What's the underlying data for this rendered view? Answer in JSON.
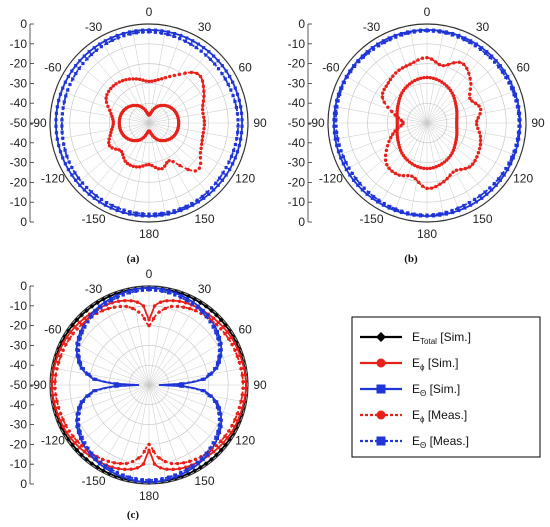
{
  "colors": {
    "total": "#000000",
    "ephi": "#e8201a",
    "etheta": "#1f35d6",
    "grid": "#c9c9c9",
    "axis": "#333333"
  },
  "chart_data": [
    {
      "type": "polar",
      "caption": "(a)",
      "angle_ticks": [
        "0",
        "30",
        "60",
        "90",
        "120",
        "150",
        "180",
        "-150",
        "-120",
        "-90",
        "-60",
        "-30"
      ],
      "radial_ticks_upper": [
        "0",
        "-10",
        "-20",
        "-30",
        "-40",
        "-50"
      ],
      "radial_ticks_lower": [
        "-40",
        "-30",
        "-20",
        "-10",
        "0"
      ],
      "rlim": [
        -50,
        0
      ],
      "series": [
        {
          "key": "etheta_sim",
          "angles_deg": [
            0,
            30,
            60,
            90,
            120,
            150,
            180,
            210,
            240,
            270,
            300,
            330
          ],
          "values_db": [
            -3,
            -3,
            -3,
            -3,
            -3,
            -3,
            -3,
            -3,
            -3,
            -3,
            -3,
            -3
          ]
        },
        {
          "key": "etheta_meas",
          "angles_deg": [
            0,
            30,
            60,
            90,
            120,
            150,
            180,
            210,
            240,
            270,
            300,
            330
          ],
          "values_db": [
            -4,
            -5,
            -5.5,
            -5,
            -5,
            -4,
            -4,
            -4.5,
            -5,
            -6,
            -5.5,
            -4.5
          ]
        },
        {
          "key": "ephi_sim",
          "angles_deg": [
            0,
            30,
            60,
            90,
            120,
            150,
            180,
            210,
            240,
            270,
            300,
            330
          ],
          "values_db": [
            -46,
            -40,
            -36,
            -35,
            -36,
            -40,
            -46,
            -40,
            -36,
            -35,
            -36,
            -40
          ]
        },
        {
          "key": "ephi_meas",
          "angles_deg": [
            0,
            15,
            30,
            45,
            60,
            75,
            90,
            105,
            120,
            135,
            150,
            165,
            180,
            195,
            210,
            225,
            240,
            255,
            270,
            285,
            300,
            315,
            330,
            345
          ],
          "values_db": [
            -29,
            -27,
            -22,
            -15,
            -18,
            -22,
            -22,
            -22,
            -20,
            -16,
            -28,
            -26,
            -29,
            -27,
            -27,
            -30,
            -27,
            -30,
            -32,
            -30,
            -25,
            -24,
            -25,
            -27
          ]
        }
      ]
    },
    {
      "type": "polar",
      "caption": "(b)",
      "angle_ticks": [
        "0",
        "30",
        "60",
        "90",
        "120",
        "150",
        "180",
        "-150",
        "-120",
        "-90",
        "-60",
        "-30"
      ],
      "radial_ticks_upper": [
        "0",
        "-10",
        "-20",
        "-30",
        "-40",
        "-50"
      ],
      "radial_ticks_lower": [
        "-40",
        "-30",
        "-20",
        "-10",
        "0"
      ],
      "rlim": [
        -50,
        0
      ],
      "series": [
        {
          "key": "etheta_sim",
          "angles_deg": [
            0,
            30,
            60,
            90,
            120,
            150,
            180,
            210,
            240,
            270,
            300,
            330
          ],
          "values_db": [
            -3,
            -3,
            -3,
            -3,
            -3,
            -3,
            -3,
            -3,
            -3,
            -3,
            -3,
            -3
          ]
        },
        {
          "key": "etheta_meas",
          "angles_deg": [
            0,
            30,
            60,
            90,
            120,
            150,
            180,
            210,
            240,
            270,
            300,
            330
          ],
          "values_db": [
            -3.5,
            -4,
            -4,
            -3.5,
            -4,
            -4.5,
            -3.5,
            -4,
            -4.5,
            -4,
            -3.5,
            -4
          ]
        },
        {
          "key": "ephi_sim",
          "angles_deg": [
            0,
            30,
            60,
            90,
            120,
            150,
            180,
            210,
            240,
            270,
            300,
            330
          ],
          "values_db": [
            -27,
            -29,
            -33,
            -35,
            -33,
            -29,
            -27,
            -29,
            -33,
            -35,
            -33,
            -29
          ]
        },
        {
          "key": "ephi_meas",
          "angles_deg": [
            0,
            15,
            30,
            45,
            60,
            75,
            90,
            105,
            120,
            135,
            150,
            165,
            180,
            195,
            210,
            225,
            240,
            255,
            270,
            285,
            300,
            315,
            330,
            345
          ],
          "values_db": [
            -17,
            -20,
            -15,
            -19,
            -25,
            -22,
            -25,
            -22,
            -20,
            -19,
            -22,
            -19,
            -17,
            -22,
            -20,
            -21,
            -27,
            -33,
            -38,
            -33,
            -24,
            -22,
            -20,
            -19
          ]
        }
      ]
    },
    {
      "type": "polar",
      "caption": "(c)",
      "angle_ticks": [
        "0",
        "30",
        "60",
        "90",
        "120",
        "150",
        "180",
        "-150",
        "-120",
        "-90",
        "-60",
        "-30"
      ],
      "radial_ticks_upper": [
        "0",
        "-10",
        "-20",
        "-30",
        "-40",
        "-50"
      ],
      "radial_ticks_lower": [
        "-40",
        "-30",
        "-20",
        "-10",
        "0"
      ],
      "rlim": [
        -50,
        0
      ],
      "series": [
        {
          "key": "total_sim",
          "angles_deg": [
            0,
            30,
            60,
            90,
            120,
            150,
            180,
            210,
            240,
            270,
            300,
            330
          ],
          "values_db": [
            -1,
            -1,
            -1,
            -1,
            -1,
            -1,
            -1,
            -1,
            -1,
            -1,
            -1,
            -1
          ]
        },
        {
          "key": "ephi_sim",
          "angles_deg": [
            0,
            4,
            10,
            20,
            30,
            45,
            60,
            75,
            90,
            105,
            120,
            135,
            150,
            160,
            170,
            176,
            180
          ],
          "values_db": [
            -17,
            -10,
            -7,
            -5,
            -4,
            -3,
            -2,
            -1.5,
            -1,
            -1.5,
            -2,
            -3,
            -4,
            -5,
            -7,
            -10,
            -17
          ]
        },
        {
          "key": "etheta_sim",
          "angles_deg": [
            0,
            20,
            40,
            60,
            75,
            84,
            88,
            90,
            92,
            96,
            105,
            120,
            140,
            160,
            180
          ],
          "values_db": [
            -1,
            -2,
            -4,
            -8,
            -14,
            -22,
            -33,
            -45,
            -33,
            -22,
            -14,
            -8,
            -4,
            -2,
            -1
          ]
        },
        {
          "key": "ephi_meas",
          "angles_deg": [
            0,
            6,
            15,
            30,
            45,
            60,
            75,
            90,
            105,
            120,
            135,
            150,
            165,
            174,
            180
          ],
          "values_db": [
            -20,
            -14,
            -9,
            -6,
            -4.5,
            -3.5,
            -3,
            -2.5,
            -3,
            -3.5,
            -4.5,
            -6,
            -9,
            -14,
            -20
          ]
        },
        {
          "key": "etheta_meas",
          "angles_deg": [
            0,
            20,
            40,
            60,
            75,
            84,
            88,
            90,
            92,
            96,
            105,
            120,
            140,
            160,
            180
          ],
          "values_db": [
            -2,
            -3,
            -5,
            -9,
            -15,
            -23,
            -34,
            -44,
            -34,
            -23,
            -15,
            -9,
            -5,
            -3,
            -2
          ]
        }
      ]
    }
  ],
  "legend": [
    {
      "key": "total_sim",
      "main": "E",
      "sub": "Total",
      "rest": " [Sim.]"
    },
    {
      "key": "ephi_sim",
      "main": "E",
      "sub": "ϕ",
      "rest": " [Sim.]"
    },
    {
      "key": "etheta_sim",
      "main": "E",
      "sub": "Θ",
      "rest": " [Sim.]"
    },
    {
      "key": "ephi_meas",
      "main": "E",
      "sub": "ϕ",
      "rest": " [Meas.]"
    },
    {
      "key": "etheta_meas",
      "main": "E",
      "sub": "Θ",
      "rest": " [Meas.]"
    }
  ]
}
